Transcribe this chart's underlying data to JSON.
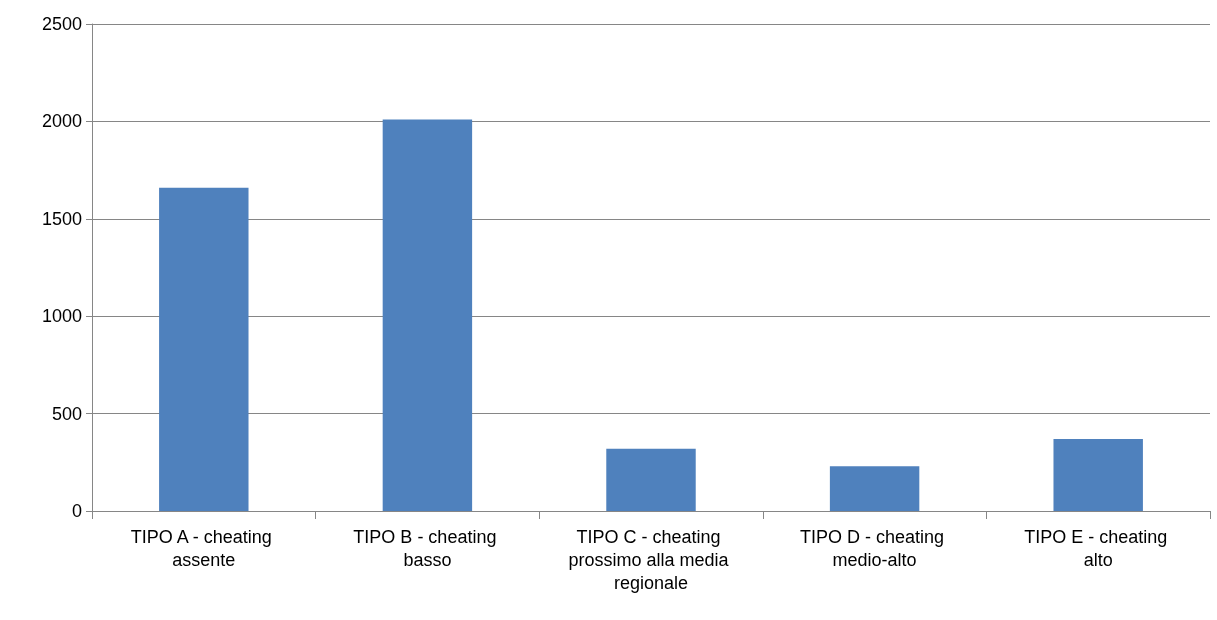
{
  "chart_data": {
    "type": "bar",
    "categories": [
      "TIPO A - cheating assente",
      "TIPO B - cheating basso",
      "TIPO C - cheating prossimo alla media regionale",
      "TIPO D - cheating medio-alto",
      "TIPO E - cheating alto"
    ],
    "values": [
      1660,
      2010,
      320,
      230,
      370
    ],
    "color": "#4f81bd",
    "ylim": [
      0,
      2500
    ],
    "yticks": [
      0,
      500,
      1000,
      1500,
      2000,
      2500
    ],
    "grid": "y"
  }
}
